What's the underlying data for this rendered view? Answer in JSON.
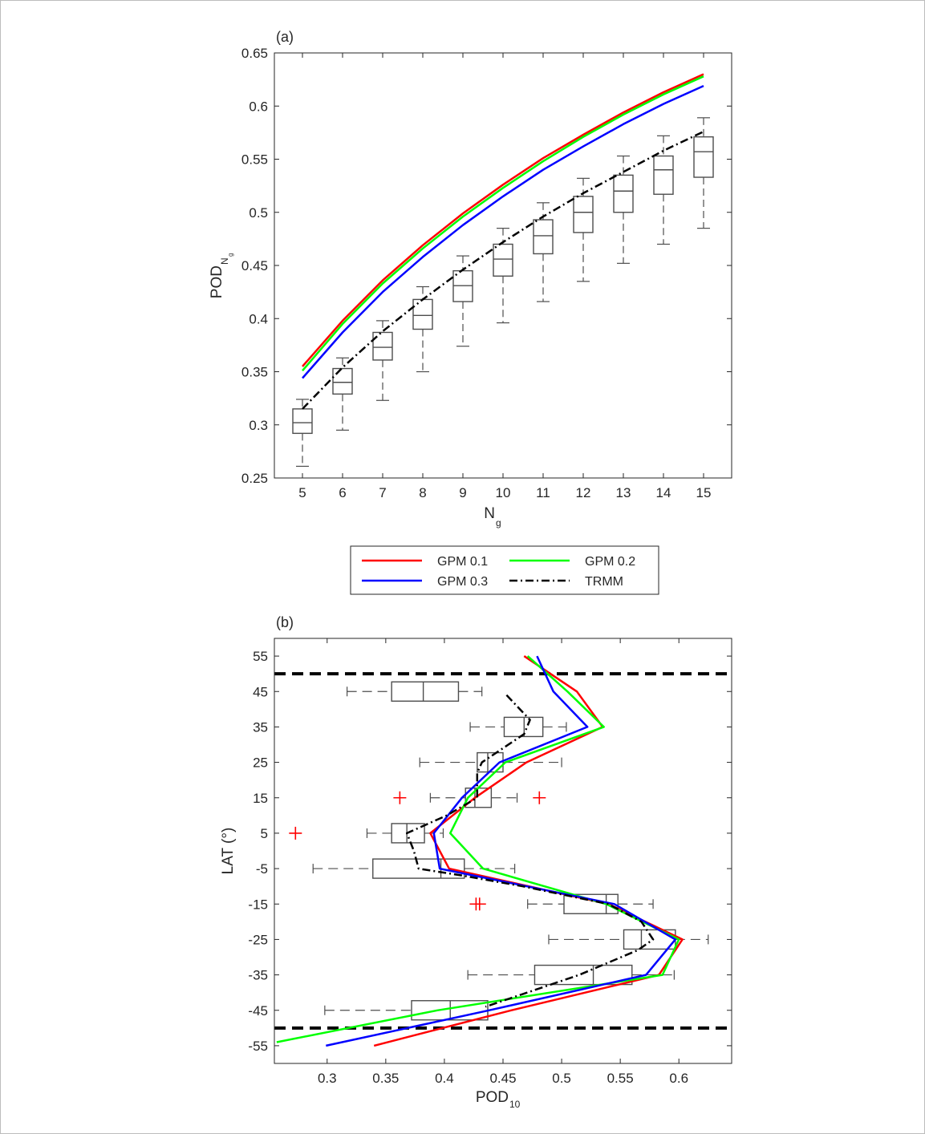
{
  "chart_data": [
    {
      "type": "line",
      "panel_label": "(a)",
      "xlabel": "N",
      "xlabel_sub": "g",
      "ylabel": "POD",
      "ylabel_sub": "N",
      "ylabel_subsub": "g",
      "xlim": [
        4.3,
        15.7
      ],
      "ylim": [
        0.25,
        0.65
      ],
      "xticks": [
        5,
        6,
        7,
        8,
        9,
        10,
        11,
        12,
        13,
        14,
        15
      ],
      "yticks": [
        0.25,
        0.3,
        0.35,
        0.4,
        0.45,
        0.5,
        0.55,
        0.6,
        0.65
      ],
      "ytick_labels": [
        "0.25",
        "0.3",
        "0.35",
        "0.4",
        "0.45",
        "0.5",
        "0.55",
        "0.6",
        "0.65"
      ],
      "x": [
        5,
        6,
        7,
        8,
        9,
        10,
        11,
        12,
        13,
        14,
        15
      ],
      "series": [
        {
          "name": "GPM 0.1",
          "color": "#ff0000",
          "dash": "solid",
          "values": [
            0.355,
            0.398,
            0.436,
            0.469,
            0.499,
            0.526,
            0.551,
            0.573,
            0.594,
            0.613,
            0.63
          ]
        },
        {
          "name": "GPM 0.2",
          "color": "#00ff00",
          "dash": "solid",
          "values": [
            0.351,
            0.395,
            0.433,
            0.466,
            0.496,
            0.523,
            0.548,
            0.571,
            0.592,
            0.611,
            0.628
          ]
        },
        {
          "name": "GPM 0.3",
          "color": "#0000ff",
          "dash": "solid",
          "values": [
            0.344,
            0.387,
            0.425,
            0.458,
            0.488,
            0.515,
            0.54,
            0.562,
            0.583,
            0.602,
            0.619
          ]
        },
        {
          "name": "TRMM",
          "color": "#000000",
          "dash": "dashdot",
          "values": [
            0.315,
            0.354,
            0.388,
            0.418,
            0.446,
            0.472,
            0.496,
            0.518,
            0.538,
            0.558,
            0.576
          ]
        }
      ],
      "boxes": [
        {
          "x": 5,
          "whisker_low": 0.261,
          "q1": 0.292,
          "median": 0.302,
          "q3": 0.315,
          "whisker_high": 0.324
        },
        {
          "x": 6,
          "whisker_low": 0.295,
          "q1": 0.329,
          "median": 0.34,
          "q3": 0.353,
          "whisker_high": 0.363
        },
        {
          "x": 7,
          "whisker_low": 0.323,
          "q1": 0.361,
          "median": 0.373,
          "q3": 0.387,
          "whisker_high": 0.398
        },
        {
          "x": 8,
          "whisker_low": 0.35,
          "q1": 0.39,
          "median": 0.403,
          "q3": 0.418,
          "whisker_high": 0.43
        },
        {
          "x": 9,
          "whisker_low": 0.374,
          "q1": 0.416,
          "median": 0.431,
          "q3": 0.445,
          "whisker_high": 0.459
        },
        {
          "x": 10,
          "whisker_low": 0.396,
          "q1": 0.44,
          "median": 0.456,
          "q3": 0.47,
          "whisker_high": 0.485
        },
        {
          "x": 11,
          "whisker_low": 0.416,
          "q1": 0.461,
          "median": 0.478,
          "q3": 0.493,
          "whisker_high": 0.509
        },
        {
          "x": 12,
          "whisker_low": 0.435,
          "q1": 0.481,
          "median": 0.5,
          "q3": 0.515,
          "whisker_high": 0.532
        },
        {
          "x": 13,
          "whisker_low": 0.452,
          "q1": 0.5,
          "median": 0.52,
          "q3": 0.535,
          "whisker_high": 0.553
        },
        {
          "x": 14,
          "whisker_low": 0.47,
          "q1": 0.517,
          "median": 0.54,
          "q3": 0.553,
          "whisker_high": 0.572
        },
        {
          "x": 15,
          "whisker_low": 0.485,
          "q1": 0.533,
          "median": 0.557,
          "q3": 0.571,
          "whisker_high": 0.589
        }
      ],
      "legend": {
        "placement": "below-chart",
        "entries": [
          {
            "label": "GPM 0.1",
            "color": "#ff0000",
            "dash": "solid"
          },
          {
            "label": "GPM 0.2",
            "color": "#00ff00",
            "dash": "solid"
          },
          {
            "label": "GPM 0.3",
            "color": "#0000ff",
            "dash": "solid"
          },
          {
            "label": "TRMM",
            "color": "#000000",
            "dash": "dashdot"
          }
        ]
      }
    },
    {
      "type": "line",
      "panel_label": "(b)",
      "xlabel": "POD",
      "xlabel_sub": "10",
      "ylabel": "LAT (°)",
      "xlim": [
        0.255,
        0.645
      ],
      "ylim": [
        -60,
        60
      ],
      "xticks": [
        0.3,
        0.35,
        0.4,
        0.45,
        0.5,
        0.55,
        0.6
      ],
      "xtick_labels": [
        "0.3",
        "0.35",
        "0.4",
        "0.45",
        "0.5",
        "0.55",
        "0.6"
      ],
      "yticks": [
        55,
        45,
        35,
        25,
        15,
        5,
        -5,
        -15,
        -25,
        -35,
        -45,
        -55
      ],
      "reference_lines": [
        50,
        -50
      ],
      "series": [
        {
          "name": "GPM 0.1",
          "color": "#ff0000",
          "dash": "solid",
          "points": [
            [
              0.468,
              55
            ],
            [
              0.513,
              45
            ],
            [
              0.535,
              35
            ],
            [
              0.47,
              25
            ],
            [
              0.426,
              15
            ],
            [
              0.388,
              5
            ],
            [
              0.404,
              -5
            ],
            [
              0.54,
              -15
            ],
            [
              0.603,
              -25
            ],
            [
              0.583,
              -35
            ],
            [
              0.457,
              -45
            ],
            [
              0.34,
              -55
            ]
          ]
        },
        {
          "name": "GPM 0.2",
          "color": "#00ff00",
          "dash": "solid",
          "points": [
            [
              0.471,
              55
            ],
            [
              0.505,
              45
            ],
            [
              0.536,
              35
            ],
            [
              0.452,
              25
            ],
            [
              0.42,
              15
            ],
            [
              0.405,
              5
            ],
            [
              0.433,
              -5
            ],
            [
              0.538,
              -15
            ],
            [
              0.6,
              -25
            ],
            [
              0.586,
              -35
            ],
            [
              0.394,
              -45
            ],
            [
              0.257,
              -54
            ]
          ]
        },
        {
          "name": "GPM 0.3",
          "color": "#0000ff",
          "dash": "solid",
          "points": [
            [
              0.479,
              55
            ],
            [
              0.493,
              45
            ],
            [
              0.522,
              35
            ],
            [
              0.447,
              25
            ],
            [
              0.415,
              15
            ],
            [
              0.391,
              5
            ],
            [
              0.396,
              -5
            ],
            [
              0.545,
              -15
            ],
            [
              0.597,
              -25
            ],
            [
              0.572,
              -35
            ],
            [
              0.438,
              -45
            ],
            [
              0.299,
              -55
            ]
          ]
        },
        {
          "name": "TRMM",
          "color": "#000000",
          "dash": "dashdot",
          "points": [
            [
              0.453,
              44
            ],
            [
              0.473,
              37
            ],
            [
              0.468,
              33
            ],
            [
              0.432,
              25
            ],
            [
              0.428,
              22
            ],
            [
              0.428,
              15
            ],
            [
              0.402,
              10
            ],
            [
              0.368,
              5
            ],
            [
              0.374,
              0
            ],
            [
              0.378,
              -5
            ],
            [
              0.416,
              -7
            ],
            [
              0.467,
              -10
            ],
            [
              0.54,
              -15
            ],
            [
              0.568,
              -20
            ],
            [
              0.578,
              -25
            ],
            [
              0.565,
              -28
            ],
            [
              0.515,
              -35
            ],
            [
              0.435,
              -44
            ]
          ]
        }
      ],
      "boxes": [
        {
          "y": 45,
          "whisker_low": 0.317,
          "q1": 0.355,
          "median": 0.382,
          "q3": 0.412,
          "whisker_high": 0.432
        },
        {
          "y": 35,
          "whisker_low": 0.422,
          "q1": 0.451,
          "median": 0.468,
          "q3": 0.484,
          "whisker_high": 0.504
        },
        {
          "y": 25,
          "whisker_low": 0.379,
          "q1": 0.428,
          "median": 0.437,
          "q3": 0.45,
          "whisker_high": 0.5
        },
        {
          "y": 15,
          "whisker_low": 0.388,
          "q1": 0.418,
          "median": 0.426,
          "q3": 0.44,
          "whisker_high": 0.462
        },
        {
          "y": 5,
          "whisker_low": 0.334,
          "q1": 0.355,
          "median": 0.368,
          "q3": 0.383,
          "whisker_high": 0.399
        },
        {
          "y": -5,
          "whisker_low": 0.288,
          "q1": 0.339,
          "median": 0.397,
          "q3": 0.417,
          "whisker_high": 0.46
        },
        {
          "y": -15,
          "whisker_low": 0.471,
          "q1": 0.502,
          "median": 0.538,
          "q3": 0.548,
          "whisker_high": 0.578
        },
        {
          "y": -25,
          "whisker_low": 0.489,
          "q1": 0.553,
          "median": 0.568,
          "q3": 0.597,
          "whisker_high": 0.625
        },
        {
          "y": -35,
          "whisker_low": 0.42,
          "q1": 0.477,
          "median": 0.527,
          "q3": 0.56,
          "whisker_high": 0.596
        },
        {
          "y": -45,
          "whisker_low": 0.298,
          "q1": 0.372,
          "median": 0.405,
          "q3": 0.437,
          "whisker_high": 0.437
        }
      ],
      "outliers": [
        {
          "x": 0.362,
          "y": 15
        },
        {
          "x": 0.481,
          "y": 15
        },
        {
          "x": 0.273,
          "y": 5
        },
        {
          "x": 0.427,
          "y": -15
        },
        {
          "x": 0.43,
          "y": -15
        }
      ]
    }
  ]
}
